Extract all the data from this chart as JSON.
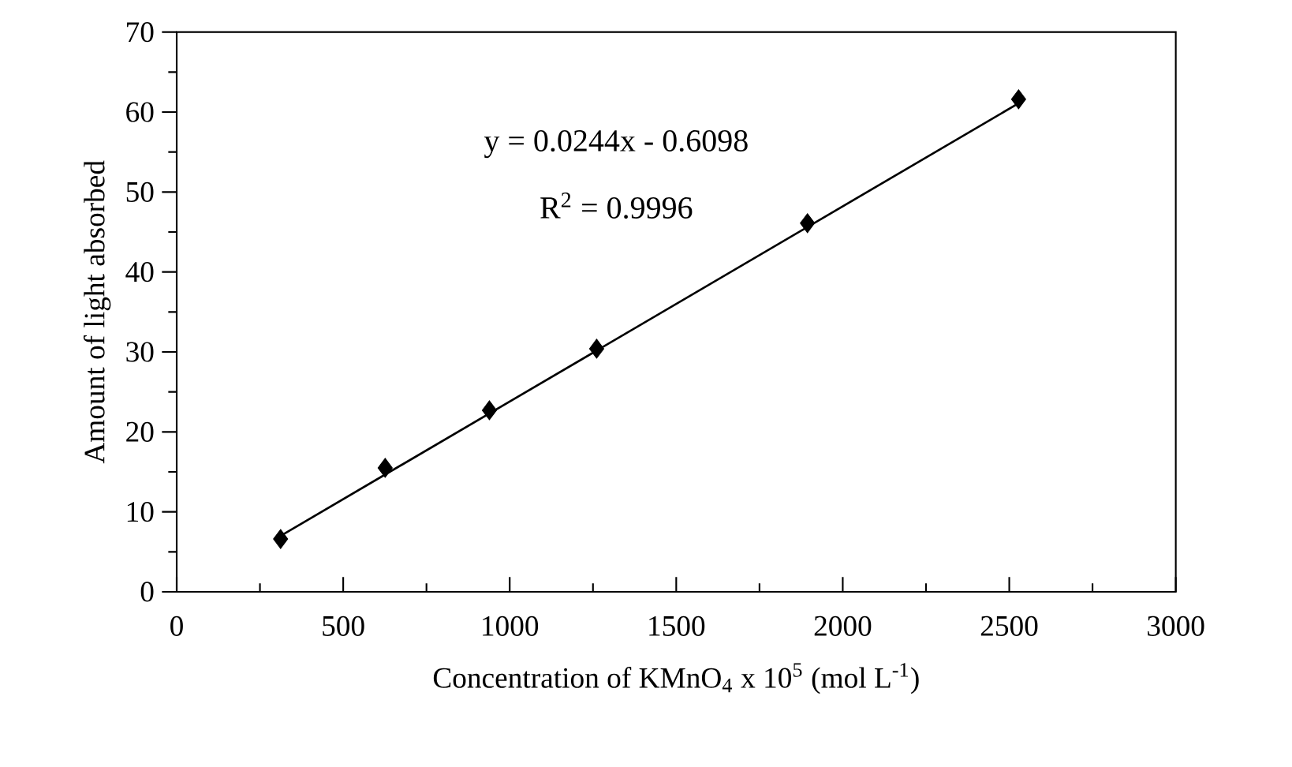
{
  "chart_data": {
    "type": "scatter",
    "xlabel": "Concentration of KMnO$_{4}$ x 10$^{5}$ (mol L$^{-1}$)",
    "ylabel": "Amount of light absorbed",
    "annotations": [
      "y = 0.0244x - 0.6098",
      "R$^{2}$ = 0.9996"
    ],
    "series": [
      {
        "color": "#000000",
        "x": [
          312,
          626,
          939,
          1261,
          1894,
          2528
        ],
        "values": [
          6.6,
          15.5,
          22.7,
          30.4,
          46.1,
          61.6
        ],
        "marker": "diamond"
      },
      {
        "type": "line",
        "color": "#000000",
        "x": [
          312,
          2528
        ],
        "values": [
          7.0,
          61.1
        ],
        "marker": "none",
        "line_style": "solid"
      }
    ],
    "xlim": [
      0,
      3000
    ],
    "xticks": [
      0,
      500,
      1000,
      1500,
      2000,
      2500,
      3000
    ],
    "ylim": [
      0,
      70
    ],
    "yticks": [
      0,
      10,
      20,
      30,
      40,
      50,
      60,
      70
    ],
    "grid": false
  }
}
